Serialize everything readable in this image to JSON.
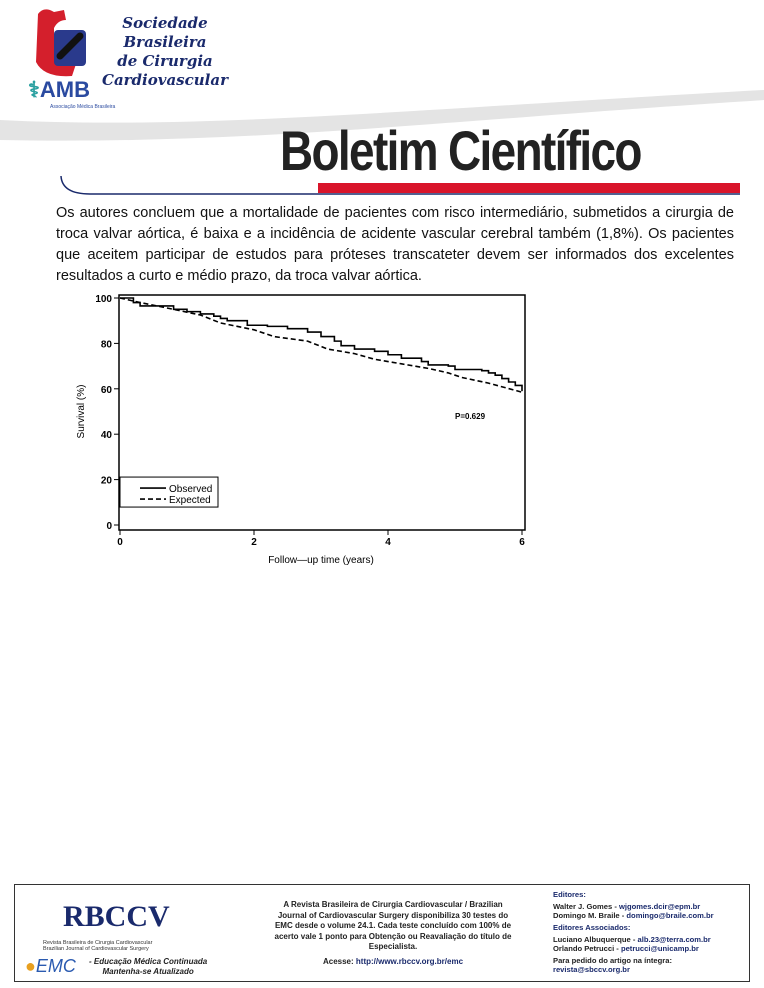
{
  "header": {
    "org_name_lines": [
      "Sociedade Brasileira",
      "de Cirurgia",
      "Cardiovascular"
    ],
    "amb_logo": "AMB",
    "amb_subtitle": "Associação Médica Brasileira",
    "title": "Boletim Científico",
    "accent_color": "#d9142a",
    "brand_color": "#1a2a6c"
  },
  "body": {
    "paragraph": "Os autores concluem que a mortalidade de pacientes com risco intermediário, submetidos a cirurgia de troca valvar aórtica,  é baixa e a incidência de acidente vascular cerebral também (1,8%). Os pacientes que aceitem participar de estudos para próteses transcateter devem ser informados dos excelentes resultados a curto e médio prazo, da troca valvar aórtica."
  },
  "chart_data": {
    "type": "line",
    "title": "",
    "xlabel": "Follow—up time (years)",
    "ylabel": "Survival (%)",
    "xlim": [
      0,
      6
    ],
    "ylim": [
      0,
      100
    ],
    "xticks": [
      0,
      2,
      4,
      6
    ],
    "yticks": [
      0,
      20,
      40,
      60,
      80,
      100
    ],
    "grid": false,
    "legend_position": "bottom-left",
    "annotation": "P=0.629",
    "series": [
      {
        "name": "Observed",
        "style": "solid",
        "step": true,
        "x": [
          0,
          0.2,
          0.3,
          0.5,
          0.8,
          1.0,
          1.2,
          1.4,
          1.5,
          1.6,
          1.9,
          2.2,
          2.5,
          2.8,
          3.0,
          3.2,
          3.3,
          3.5,
          3.8,
          4.0,
          4.2,
          4.5,
          4.6,
          4.9,
          5.0,
          5.4,
          5.5,
          5.6,
          5.7,
          5.8,
          5.9,
          6.0
        ],
        "y": [
          100,
          98,
          96.5,
          96.5,
          95,
          94,
          93,
          92,
          91,
          90,
          88,
          87.5,
          86.5,
          85,
          83,
          81,
          79,
          77.5,
          76.5,
          75,
          73.5,
          72,
          70.5,
          70,
          68.5,
          68,
          67,
          66,
          64.5,
          63,
          61.5,
          59
        ]
      },
      {
        "name": "Expected",
        "style": "dashed",
        "step": false,
        "x": [
          0,
          0.3,
          0.8,
          1.2,
          1.5,
          2.0,
          2.3,
          2.8,
          3.1,
          3.5,
          3.8,
          4.2,
          4.6,
          4.9,
          5.1,
          5.5,
          6.0
        ],
        "y": [
          100,
          98,
          95,
          92.5,
          89,
          86,
          83,
          81,
          77.5,
          75.5,
          73,
          71,
          69,
          67,
          65,
          62.5,
          58.5
        ]
      }
    ]
  },
  "footer": {
    "rbccv_logo": "RBCCV",
    "rbccv_subtitle": [
      "Revista Brasileira de Cirurgia Cardiovascular",
      "Brazilian Journal of Cardiovascular Surgery"
    ],
    "emc_logo": "EMC",
    "emc_subtitle": [
      "- Educação Médica Continuada",
      "Mantenha-se Atualizado"
    ],
    "description": "A Revista Brasileira de Cirurgia Cardiovascular / Brazilian Journal of Cardiovascular Surgery disponibiliza 30 testes do EMC desde o volume 24.1. Cada teste concluído com 100% de acerto vale 1 ponto para Obtenção ou Reavaliação do título de Especialista.",
    "access_label": "Acesse: ",
    "access_url": "http://www.rbccv.org.br/emc",
    "editors_heading": "Editores:",
    "editors": [
      {
        "name": "Walter J. Gomes - ",
        "email": "wjgomes.dcir@epm.br"
      },
      {
        "name": "Domingo M. Braile - ",
        "email": "domingo@braile.com.br"
      }
    ],
    "associate_heading": "Editores Associados:",
    "associates": [
      {
        "name": "Luciano Albuquerque - ",
        "email": "alb.23@terra.com.br"
      },
      {
        "name": "Orlando Petrucci - ",
        "email": "petrucci@unicamp.br"
      }
    ],
    "request_label": "Para pedido do artigo na íntegra:",
    "request_email": "revista@sbccv.org.br"
  }
}
